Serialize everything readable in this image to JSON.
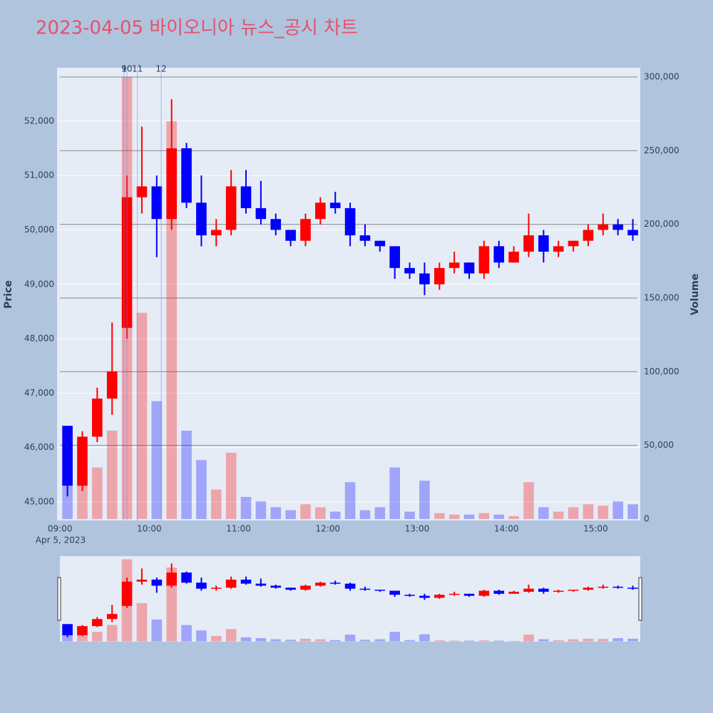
{
  "chart_data": {
    "type": "candlestick",
    "title": "2023-04-05 바이오니아 뉴스_공시 차트",
    "y_label": "Price",
    "y2_label": "Volume",
    "x_date_label": "Apr 5, 2023",
    "increasing_color": "#ff0000",
    "decreasing_color": "#0000ff",
    "x": [
      "09:00",
      "09:10",
      "09:20",
      "09:30",
      "09:40",
      "09:50",
      "10:00",
      "10:10",
      "10:20",
      "10:30",
      "10:40",
      "10:50",
      "11:00",
      "11:10",
      "11:20",
      "11:30",
      "11:40",
      "11:50",
      "12:00",
      "12:10",
      "12:20",
      "12:30",
      "12:40",
      "12:50",
      "13:00",
      "13:10",
      "13:20",
      "13:30",
      "13:40",
      "13:50",
      "14:00",
      "14:10",
      "14:20",
      "14:30",
      "14:40",
      "14:50",
      "15:00",
      "15:10",
      "15:20"
    ],
    "open": [
      46400,
      45300,
      46200,
      46900,
      48200,
      50600,
      50800,
      50200,
      51500,
      50500,
      49900,
      50000,
      50800,
      50400,
      50200,
      50000,
      49800,
      50200,
      50500,
      50400,
      49900,
      49800,
      49700,
      49300,
      49200,
      49000,
      49300,
      49400,
      49200,
      49700,
      49400,
      49600,
      49900,
      49600,
      49700,
      49800,
      50000,
      50100,
      50000
    ],
    "high": [
      46400,
      46300,
      47100,
      48300,
      51000,
      51900,
      51000,
      52400,
      51600,
      51000,
      50200,
      51100,
      51100,
      50900,
      50300,
      50000,
      50300,
      50600,
      50700,
      50500,
      50100,
      49800,
      49700,
      49400,
      49400,
      49400,
      49600,
      49400,
      49800,
      49800,
      49700,
      50300,
      50000,
      49800,
      49800,
      50100,
      50300,
      50200,
      50200
    ],
    "low": [
      45100,
      45200,
      46100,
      46600,
      48000,
      50300,
      49500,
      50000,
      50400,
      49700,
      49700,
      49900,
      50300,
      50100,
      49900,
      49700,
      49700,
      50100,
      50300,
      49700,
      49700,
      49600,
      49100,
      49100,
      48800,
      48900,
      49200,
      49100,
      49100,
      49300,
      49400,
      49500,
      49400,
      49500,
      49600,
      49700,
      49900,
      49900,
      49800
    ],
    "close": [
      45300,
      46200,
      46900,
      47400,
      50600,
      50800,
      50200,
      51500,
      50500,
      49900,
      50000,
      50800,
      50400,
      50200,
      50000,
      49800,
      50200,
      50500,
      50400,
      49900,
      49800,
      49700,
      49300,
      49200,
      49000,
      49300,
      49400,
      49200,
      49700,
      49400,
      49600,
      49900,
      49600,
      49700,
      49800,
      50000,
      50100,
      50000,
      49900
    ],
    "volume": [
      40000,
      30000,
      35000,
      60000,
      300000,
      140000,
      80000,
      270000,
      60000,
      40000,
      20000,
      45000,
      15000,
      12000,
      8000,
      6000,
      10000,
      8000,
      5000,
      25000,
      6000,
      8000,
      35000,
      5000,
      26000,
      4000,
      3000,
      3000,
      4000,
      3000,
      2000,
      25000,
      8000,
      5000,
      8000,
      10000,
      9000,
      12000,
      10000
    ],
    "xlim": [
      "08:58",
      "15:30"
    ],
    "xticks": [
      "09:00",
      "10:00",
      "11:00",
      "12:00",
      "13:00",
      "14:00",
      "15:00"
    ],
    "ylim": [
      44660,
      52980
    ],
    "yticks": [
      {
        "value": 45000,
        "label": "45,000"
      },
      {
        "value": 46000,
        "label": "46,000"
      },
      {
        "value": 47000,
        "label": "47,000"
      },
      {
        "value": 48000,
        "label": "48,000"
      },
      {
        "value": 49000,
        "label": "49,000"
      },
      {
        "value": 50000,
        "label": "50,000"
      },
      {
        "value": 51000,
        "label": "51,000"
      },
      {
        "value": 52000,
        "label": "52,000"
      }
    ],
    "y2lim": [
      -1000,
      306300
    ],
    "y2ticks": [
      0,
      {
        "value": 50000,
        "label": "50,000"
      },
      {
        "value": 100000,
        "label": "100,000"
      },
      {
        "value": 150000,
        "label": "150,000"
      },
      {
        "value": 200000,
        "label": "200,000"
      },
      {
        "value": 250000,
        "label": "250,000"
      },
      {
        "value": 300000,
        "label": "300,000"
      }
    ],
    "annotations": [
      {
        "x": "09:43",
        "text": "9"
      },
      {
        "x": "09:45",
        "text": "10"
      },
      {
        "x": "09:52",
        "text": "11"
      },
      {
        "x": "10:08",
        "text": "12"
      }
    ],
    "grid": true
  }
}
